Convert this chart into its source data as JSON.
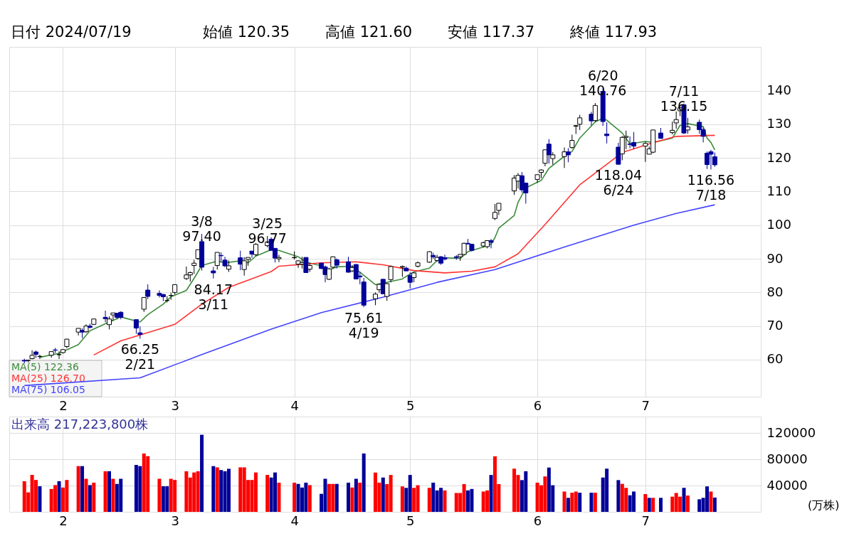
{
  "chart_data": [
    {
      "type": "candlestick",
      "title": "日付 2024/07/19",
      "annotations": [
        "始値 120.35",
        "高値 121.60",
        "安値 117.37",
        "終値 117.93",
        {
          "text": "3/8\n97.40",
          "x": "2024-03-08",
          "y": 97.4
        },
        {
          "text": "3/25\n96.77",
          "x": "2024-03-25",
          "y": 96.77
        },
        {
          "text": "6/20\n140.76",
          "x": "2024-06-20",
          "y": 140.76
        },
        {
          "text": "7/11\n136.15",
          "x": "2024-07-11",
          "y": 136.15
        },
        {
          "text": "66.25\n2/21",
          "x": "2024-02-21",
          "y": 66.25
        },
        {
          "text": "84.17\n3/11",
          "x": "2024-03-11",
          "y": 84.17
        },
        {
          "text": "75.61\n4/19",
          "x": "2024-04-19",
          "y": 75.61
        },
        {
          "text": "118.04\n6/24",
          "x": "2024-06-24",
          "y": 118.04
        },
        {
          "text": "116.56\n7/18",
          "x": "2024-07-18",
          "y": 116.56
        }
      ],
      "x": [
        "2024-01-22",
        "2024-01-23",
        "2024-01-24",
        "2024-01-25",
        "2024-01-26",
        "2024-01-29",
        "2024-01-30",
        "2024-01-31",
        "2024-02-01",
        "2024-02-02",
        "2024-02-05",
        "2024-02-06",
        "2024-02-07",
        "2024-02-08",
        "2024-02-09",
        "2024-02-12",
        "2024-02-13",
        "2024-02-14",
        "2024-02-15",
        "2024-02-16",
        "2024-02-20",
        "2024-02-21",
        "2024-02-22",
        "2024-02-23",
        "2024-02-26",
        "2024-02-27",
        "2024-02-28",
        "2024-02-29",
        "2024-03-01",
        "2024-03-04",
        "2024-03-05",
        "2024-03-06",
        "2024-03-07",
        "2024-03-08",
        "2024-03-11",
        "2024-03-12",
        "2024-03-13",
        "2024-03-14",
        "2024-03-15",
        "2024-03-18",
        "2024-03-19",
        "2024-03-20",
        "2024-03-21",
        "2024-03-22",
        "2024-03-25",
        "2024-03-26",
        "2024-03-27",
        "2024-03-28",
        "2024-04-01",
        "2024-04-02",
        "2024-04-03",
        "2024-04-04",
        "2024-04-05",
        "2024-04-08",
        "2024-04-09",
        "2024-04-10",
        "2024-04-11",
        "2024-04-12",
        "2024-04-15",
        "2024-04-16",
        "2024-04-17",
        "2024-04-18",
        "2024-04-19",
        "2024-04-22",
        "2024-04-23",
        "2024-04-24",
        "2024-04-25",
        "2024-04-26",
        "2024-04-29",
        "2024-04-30",
        "2024-05-01",
        "2024-05-02",
        "2024-05-03",
        "2024-05-06",
        "2024-05-07",
        "2024-05-08",
        "2024-05-09",
        "2024-05-10",
        "2024-05-13",
        "2024-05-14",
        "2024-05-15",
        "2024-05-16",
        "2024-05-17",
        "2024-05-20",
        "2024-05-21",
        "2024-05-22",
        "2024-05-23",
        "2024-05-24",
        "2024-05-28",
        "2024-05-29",
        "2024-05-30",
        "2024-05-31",
        "2024-06-03",
        "2024-06-04",
        "2024-06-05",
        "2024-06-06",
        "2024-06-07",
        "2024-06-10",
        "2024-06-11",
        "2024-06-12",
        "2024-06-13",
        "2024-06-14",
        "2024-06-17",
        "2024-06-18",
        "2024-06-20",
        "2024-06-21",
        "2024-06-24",
        "2024-06-25",
        "2024-06-26",
        "2024-06-27",
        "2024-06-28",
        "2024-07-01",
        "2024-07-02",
        "2024-07-03",
        "2024-07-05",
        "2024-07-08",
        "2024-07-09",
        "2024-07-10",
        "2024-07-11",
        "2024-07-12",
        "2024-07-15",
        "2024-07-16",
        "2024-07-17",
        "2024-07-18",
        "2024-07-19"
      ],
      "ohlc": [
        [
          59.8,
          60.3,
          58.9,
          59.6
        ],
        [
          59.8,
          60.0,
          59.2,
          59.8
        ],
        [
          60.3,
          62.8,
          60.1,
          61.3
        ],
        [
          62.3,
          62.7,
          60.5,
          61.6
        ],
        [
          60.9,
          61.5,
          60.2,
          61.0
        ],
        [
          61.3,
          62.5,
          60.6,
          62.4
        ],
        [
          62.9,
          63.5,
          62.0,
          62.8
        ],
        [
          61.5,
          62.5,
          60.2,
          61.5
        ],
        [
          62.1,
          63.2,
          61.8,
          63.0
        ],
        [
          63.9,
          66.2,
          63.4,
          66.1
        ],
        [
          68.2,
          69.3,
          67.2,
          69.3
        ],
        [
          68.7,
          69.3,
          66.4,
          68.2
        ],
        [
          68.3,
          70.5,
          68.0,
          70.0
        ],
        [
          70.0,
          70.7,
          69.3,
          69.6
        ],
        [
          70.5,
          72.1,
          70.3,
          72.1
        ],
        [
          72.6,
          74.6,
          71.1,
          72.2
        ],
        [
          70.4,
          72.9,
          69.0,
          72.1
        ],
        [
          73.3,
          73.9,
          71.5,
          73.9
        ],
        [
          73.8,
          73.9,
          72.0,
          72.6
        ],
        [
          74.1,
          74.4,
          72.0,
          72.6
        ],
        [
          71.9,
          71.9,
          67.7,
          69.4
        ],
        [
          68.0,
          69.9,
          66.25,
          67.5
        ],
        [
          75.0,
          78.5,
          74.2,
          78.5
        ],
        [
          80.7,
          82.4,
          78.0,
          78.8
        ],
        [
          79.7,
          80.6,
          78.5,
          79.1
        ],
        [
          79.4,
          79.5,
          77.4,
          78.7
        ],
        [
          77.6,
          78.9,
          77.0,
          77.6
        ],
        [
          79.1,
          79.9,
          77.8,
          79.1
        ],
        [
          80.0,
          82.3,
          79.4,
          82.3
        ],
        [
          84.1,
          87.7,
          83.7,
          85.2
        ],
        [
          85.2,
          86.2,
          83.2,
          85.9
        ],
        [
          88.0,
          89.7,
          85.5,
          88.7
        ],
        [
          90.1,
          92.7,
          89.6,
          92.7
        ],
        [
          95.1,
          97.4,
          86.5,
          87.5
        ],
        [
          86.4,
          87.6,
          84.17,
          85.8
        ],
        [
          88.0,
          91.9,
          86.8,
          91.9
        ],
        [
          91.0,
          91.9,
          89.1,
          90.9
        ],
        [
          89.6,
          90.6,
          87.5,
          87.9
        ],
        [
          86.9,
          89.5,
          86.1,
          87.9
        ],
        [
          90.3,
          92.4,
          86.6,
          88.4
        ],
        [
          86.8,
          90.5,
          85.0,
          89.4
        ],
        [
          89.8,
          90.4,
          87.9,
          90.4
        ],
        [
          92.3,
          92.3,
          90.3,
          91.4
        ],
        [
          91.2,
          94.7,
          90.8,
          94.3
        ],
        [
          93.9,
          96.77,
          93.4,
          95.0
        ],
        [
          95.8,
          96.4,
          92.5,
          92.5
        ],
        [
          93.1,
          93.2,
          88.9,
          90.2
        ],
        [
          90.0,
          91.2,
          89.0,
          90.4
        ],
        [
          90.3,
          92.2,
          89.8,
          90.4
        ],
        [
          88.4,
          89.5,
          87.3,
          89.4
        ],
        [
          88.4,
          90.6,
          87.1,
          88.9
        ],
        [
          90.4,
          90.4,
          85.9,
          85.9
        ],
        [
          86.9,
          88.8,
          86.1,
          88.0
        ],
        [
          88.7,
          88.8,
          86.9,
          87.1
        ],
        [
          87.6,
          88.0,
          83.0,
          85.3
        ],
        [
          83.9,
          87.3,
          83.7,
          87.0
        ],
        [
          87.5,
          90.7,
          87.1,
          90.6
        ],
        [
          89.7,
          90.1,
          87.1,
          88.1
        ],
        [
          89.1,
          90.6,
          85.9,
          86.0
        ],
        [
          86.4,
          88.1,
          86.0,
          87.4
        ],
        [
          88.3,
          88.4,
          83.9,
          84.0
        ],
        [
          84.9,
          86.1,
          82.4,
          84.6
        ],
        [
          83.1,
          84.3,
          75.61,
          76.2
        ],
        [
          78.1,
          80.0,
          76.2,
          79.5
        ],
        [
          80.8,
          82.6,
          79.9,
          82.4
        ],
        [
          83.9,
          84.0,
          79.5,
          79.6
        ],
        [
          78.8,
          82.9,
          77.5,
          82.6
        ],
        [
          83.8,
          88.0,
          83.0,
          87.7
        ],
        [
          87.5,
          88.0,
          84.6,
          87.7
        ],
        [
          87.2,
          87.7,
          86.3,
          86.4
        ],
        [
          85.0,
          86.0,
          81.2,
          83.0
        ],
        [
          84.4,
          85.9,
          83.0,
          85.8
        ],
        [
          87.8,
          89.2,
          87.4,
          88.8
        ],
        [
          89.0,
          92.2,
          88.8,
          92.1
        ],
        [
          91.0,
          91.8,
          90.0,
          90.6
        ],
        [
          89.5,
          91.2,
          89.1,
          90.4
        ],
        [
          90.6,
          90.8,
          88.2,
          88.7
        ],
        [
          90.3,
          91.2,
          89.5,
          89.9
        ],
        [
          90.6,
          91.1,
          89.7,
          90.4
        ],
        [
          90.6,
          91.4,
          89.4,
          91.3
        ],
        [
          91.3,
          94.8,
          91.3,
          94.6
        ],
        [
          94.6,
          95.9,
          94.4,
          94.4
        ],
        [
          94.3,
          94.5,
          92.2,
          92.5
        ],
        [
          93.8,
          95.1,
          93.4,
          94.8
        ],
        [
          93.6,
          95.4,
          93.1,
          95.4
        ],
        [
          95.4,
          95.9,
          93.1,
          94.9
        ],
        [
          102.0,
          106.3,
          101.5,
          103.8
        ],
        [
          104.4,
          106.5,
          103.0,
          106.5
        ],
        [
          110.2,
          114.9,
          109.0,
          114.0
        ],
        [
          113.1,
          115.5,
          110.9,
          114.8
        ],
        [
          114.7,
          115.8,
          109.7,
          110.5
        ],
        [
          112.5,
          112.7,
          106.4,
          109.6
        ],
        [
          113.6,
          115.0,
          112.6,
          115.0
        ],
        [
          115.7,
          116.6,
          114.0,
          116.4
        ],
        [
          118.4,
          122.4,
          117.5,
          122.4
        ],
        [
          124.1,
          125.6,
          118.3,
          120.9
        ],
        [
          119.8,
          121.7,
          118.0,
          120.9
        ],
        [
          120.4,
          123.1,
          117.0,
          121.8
        ],
        [
          121.8,
          122.9,
          118.7,
          120.9
        ],
        [
          123.1,
          126.9,
          122.7,
          125.2
        ],
        [
          129.4,
          129.8,
          127.1,
          129.6
        ],
        [
          130.0,
          132.8,
          128.3,
          131.9
        ],
        [
          133.0,
          133.7,
          129.6,
          131.0
        ],
        [
          131.1,
          136.3,
          130.7,
          135.6
        ],
        [
          139.8,
          140.76,
          129.5,
          130.8
        ],
        [
          127.1,
          130.6,
          124.3,
          126.6
        ],
        [
          123.2,
          124.5,
          118.04,
          118.1
        ],
        [
          121.2,
          126.5,
          119.3,
          126.1
        ],
        [
          126.1,
          128.1,
          122.6,
          126.4
        ],
        [
          124.1,
          126.4,
          122.9,
          124.0
        ],
        [
          124.6,
          127.7,
          122.6,
          123.5
        ],
        [
          123.5,
          124.8,
          118.8,
          124.3
        ],
        [
          121.1,
          123.4,
          121.1,
          122.7
        ],
        [
          121.7,
          128.3,
          121.4,
          128.3
        ],
        [
          127.4,
          128.9,
          125.7,
          125.8
        ],
        [
          127.5,
          130.8,
          127.0,
          128.2
        ],
        [
          130.4,
          133.8,
          128.7,
          131.4
        ],
        [
          134.0,
          135.1,
          132.4,
          134.9
        ],
        [
          135.8,
          136.15,
          127.1,
          127.4
        ],
        [
          128.3,
          131.9,
          127.2,
          129.2
        ],
        [
          130.6,
          131.4,
          127.2,
          128.4
        ],
        [
          128.4,
          129.0,
          124.6,
          126.4
        ],
        [
          121.4,
          121.9,
          116.7,
          118.0
        ],
        [
          121.85,
          122.4,
          116.56,
          121.09
        ],
        [
          120.35,
          121.6,
          117.37,
          117.93
        ]
      ],
      "series": [
        {
          "name": "MA(5)  122.36",
          "type": "line",
          "color": "#3c8c3c",
          "x": [
            "2024-01-26",
            "2024-01-31",
            "2024-02-05",
            "2024-02-08",
            "2024-02-13",
            "2024-02-16",
            "2024-02-21",
            "2024-02-23",
            "2024-02-27",
            "2024-02-29",
            "2024-03-04",
            "2024-03-06",
            "2024-03-08",
            "2024-03-12",
            "2024-03-14",
            "2024-03-18",
            "2024-03-20",
            "2024-03-22",
            "2024-03-26",
            "2024-03-28",
            "2024-04-02",
            "2024-04-04",
            "2024-04-08",
            "2024-04-10",
            "2024-04-12",
            "2024-04-16",
            "2024-04-18",
            "2024-04-22",
            "2024-04-29",
            "2024-04-30",
            "2024-05-02",
            "2024-05-06",
            "2024-05-08",
            "2024-05-10",
            "2024-05-14",
            "2024-05-16",
            "2024-05-20",
            "2024-05-22",
            "2024-05-23",
            "2024-05-24",
            "2024-05-28",
            "2024-05-29",
            "2024-05-31",
            "2024-06-04",
            "2024-06-06",
            "2024-06-10",
            "2024-06-12",
            "2024-06-14",
            "2024-06-18",
            "2024-06-20",
            "2024-06-21",
            "2024-06-25",
            "2024-06-27",
            "2024-07-01",
            "2024-07-03",
            "2024-07-08",
            "2024-07-10",
            "2024-07-12",
            "2024-07-16",
            "2024-07-17",
            "2024-07-18",
            "2024-07-19"
          ],
          "values": [
            60.7,
            61.9,
            64.5,
            68.6,
            71.2,
            72.7,
            71.2,
            73.4,
            76.5,
            78.7,
            80.6,
            84.2,
            88.0,
            89.3,
            88.8,
            89.4,
            88.8,
            90.8,
            92.7,
            92.5,
            90.6,
            89.0,
            87.9,
            86.7,
            87.6,
            87.8,
            86.0,
            82.3,
            84.0,
            84.8,
            86.1,
            87.2,
            89.5,
            90.3,
            90.1,
            92.1,
            93.5,
            94.4,
            96.3,
            99.1,
            102.9,
            106.8,
            111.1,
            113.3,
            116.9,
            120.5,
            121.9,
            125.9,
            130.7,
            131.8,
            131.2,
            127.4,
            124.2,
            124.9,
            124.6,
            125.9,
            129.7,
            130.2,
            129.3,
            125.9,
            124.6,
            122.36
          ]
        },
        {
          "name": "MA(25)  126.70",
          "type": "line",
          "color": "#ff3333",
          "x": [
            "2024-02-09",
            "2024-02-16",
            "2024-03-01",
            "2024-03-08",
            "2024-03-15",
            "2024-03-26",
            "2024-03-28",
            "2024-04-08",
            "2024-04-17",
            "2024-04-24",
            "2024-05-02",
            "2024-05-10",
            "2024-05-17",
            "2024-05-23",
            "2024-05-29",
            "2024-06-05",
            "2024-06-14",
            "2024-06-25",
            "2024-07-03",
            "2024-07-09",
            "2024-07-19"
          ],
          "values": [
            61.4,
            65.6,
            70.5,
            76.5,
            81.5,
            86.2,
            87.8,
            88.8,
            89.1,
            88.2,
            86.5,
            85.8,
            86.3,
            87.6,
            91.5,
            100.2,
            112.0,
            121.6,
            124.5,
            126.4,
            126.7
          ]
        },
        {
          "name": "MA(75)  106.05",
          "type": "line",
          "color": "#4444ff",
          "x": [
            "2024-01-22",
            "2024-02-21",
            "2024-03-08",
            "2024-03-26",
            "2024-04-08",
            "2024-04-24",
            "2024-05-08",
            "2024-05-23",
            "2024-06-10",
            "2024-06-28",
            "2024-07-09",
            "2024-07-19"
          ],
          "values": [
            52.3,
            54.6,
            61.5,
            69.1,
            74.0,
            78.6,
            83.0,
            86.8,
            93.5,
            100.0,
            103.5,
            106.05
          ]
        }
      ],
      "xlim": [
        "2024-01-19",
        "2024-07-30"
      ],
      "xticks": [
        {
          "value": "2024-02-01",
          "label": "2"
        },
        {
          "value": "2024-03-01",
          "label": "3"
        },
        {
          "value": "2024-04-01",
          "label": "4"
        },
        {
          "value": "2024-05-01",
          "label": "5"
        },
        {
          "value": "2024-06-03",
          "label": "6"
        },
        {
          "value": "2024-07-01",
          "label": "7"
        }
      ],
      "ylim": [
        49,
        153
      ],
      "yticks": [
        60,
        70,
        80,
        90,
        100,
        110,
        120,
        130,
        140
      ],
      "grid": true,
      "legend": "bottom left"
    },
    {
      "type": "bar",
      "title": "出来高 217,223,800株",
      "ylabel": "(万株)",
      "x": [
        "2024-01-22",
        "2024-01-23",
        "2024-01-24",
        "2024-01-25",
        "2024-01-26",
        "2024-01-29",
        "2024-01-30",
        "2024-01-31",
        "2024-02-01",
        "2024-02-02",
        "2024-02-05",
        "2024-02-06",
        "2024-02-07",
        "2024-02-08",
        "2024-02-09",
        "2024-02-12",
        "2024-02-13",
        "2024-02-14",
        "2024-02-15",
        "2024-02-16",
        "2024-02-20",
        "2024-02-21",
        "2024-02-22",
        "2024-02-23",
        "2024-02-26",
        "2024-02-27",
        "2024-02-28",
        "2024-02-29",
        "2024-03-01",
        "2024-03-04",
        "2024-03-05",
        "2024-03-06",
        "2024-03-07",
        "2024-03-08",
        "2024-03-11",
        "2024-03-12",
        "2024-03-13",
        "2024-03-14",
        "2024-03-15",
        "2024-03-18",
        "2024-03-19",
        "2024-03-20",
        "2024-03-21",
        "2024-03-22",
        "2024-03-25",
        "2024-03-26",
        "2024-03-27",
        "2024-03-28",
        "2024-04-01",
        "2024-04-02",
        "2024-04-03",
        "2024-04-04",
        "2024-04-05",
        "2024-04-08",
        "2024-04-09",
        "2024-04-10",
        "2024-04-11",
        "2024-04-12",
        "2024-04-15",
        "2024-04-16",
        "2024-04-17",
        "2024-04-18",
        "2024-04-19",
        "2024-04-22",
        "2024-04-23",
        "2024-04-24",
        "2024-04-25",
        "2024-04-26",
        "2024-04-29",
        "2024-04-30",
        "2024-05-01",
        "2024-05-02",
        "2024-05-03",
        "2024-05-06",
        "2024-05-07",
        "2024-05-08",
        "2024-05-09",
        "2024-05-10",
        "2024-05-13",
        "2024-05-14",
        "2024-05-15",
        "2024-05-16",
        "2024-05-17",
        "2024-05-20",
        "2024-05-21",
        "2024-05-22",
        "2024-05-23",
        "2024-05-24",
        "2024-05-28",
        "2024-05-29",
        "2024-05-30",
        "2024-05-31",
        "2024-06-03",
        "2024-06-04",
        "2024-06-05",
        "2024-06-06",
        "2024-06-07",
        "2024-06-10",
        "2024-06-11",
        "2024-06-12",
        "2024-06-13",
        "2024-06-14",
        "2024-06-17",
        "2024-06-18",
        "2024-06-20",
        "2024-06-21",
        "2024-06-24",
        "2024-06-25",
        "2024-06-26",
        "2024-06-27",
        "2024-06-28",
        "2024-07-01",
        "2024-07-02",
        "2024-07-03",
        "2024-07-05",
        "2024-07-08",
        "2024-07-09",
        "2024-07-10",
        "2024-07-11",
        "2024-07-12",
        "2024-07-15",
        "2024-07-16",
        "2024-07-17",
        "2024-07-18",
        "2024-07-19"
      ],
      "values": [
        46600,
        29600,
        56200,
        48500,
        38900,
        34800,
        40700,
        46600,
        37000,
        48500,
        69600,
        69600,
        50300,
        40700,
        44400,
        61800,
        61800,
        50300,
        42500,
        50300,
        71400,
        69600,
        88800,
        84700,
        50300,
        38900,
        38900,
        50300,
        48500,
        61800,
        52200,
        59900,
        61800,
        117300,
        69600,
        67700,
        63600,
        61800,
        65500,
        67700,
        67700,
        48500,
        48500,
        59900,
        56200,
        52200,
        59900,
        44400,
        44400,
        42500,
        37000,
        44400,
        40700,
        27400,
        50300,
        42500,
        42500,
        42500,
        44400,
        37000,
        50300,
        44400,
        88800,
        59900,
        44400,
        52200,
        42200,
        56100,
        38700,
        36500,
        56100,
        36500,
        40500,
        36500,
        44400,
        32600,
        36500,
        32600,
        28700,
        28700,
        42200,
        32600,
        34800,
        30900,
        32600,
        56100,
        84400,
        42200,
        65700,
        56100,
        48300,
        61800,
        44400,
        40500,
        53900,
        67400,
        40500,
        30900,
        21300,
        29100,
        30900,
        29100,
        29100,
        29100,
        52200,
        65700,
        48300,
        42600,
        36500,
        25200,
        30900,
        27000,
        21300,
        21300,
        21300,
        23100,
        28700,
        23100,
        36500,
        24800,
        19100,
        21300,
        38700,
        30900,
        21722
      ],
      "colors": [
        "#ff0000",
        "#ff0000",
        "#ff0000",
        "#ff0000",
        "#000099",
        "#ff0000",
        "#ff0000",
        "#000099",
        "#ff0000",
        "#ff0000",
        "#ff0000",
        "#000099",
        "#ff0000",
        "#000099",
        "#ff0000",
        "#ff0000",
        "#000099",
        "#ff0000",
        "#000099",
        "#000099",
        "#000099",
        "#000099",
        "#ff0000",
        "#ff0000",
        "#ff0000",
        "#000099",
        "#000099",
        "#ff0000",
        "#ff0000",
        "#ff0000",
        "#ff0000",
        "#ff0000",
        "#ff0000",
        "#000099",
        "#000099",
        "#ff0000",
        "#000099",
        "#000099",
        "#000099",
        "#ff0000",
        "#ff0000",
        "#ff0000",
        "#ff0000",
        "#ff0000",
        "#ff0000",
        "#000099",
        "#000099",
        "#ff0000",
        "#ff0000",
        "#000099",
        "#000099",
        "#000099",
        "#ff0000",
        "#000099",
        "#000099",
        "#ff0000",
        "#ff0000",
        "#000099",
        "#000099",
        "#ff0000",
        "#000099",
        "#ff0000",
        "#000099",
        "#ff0000",
        "#ff0000",
        "#000099",
        "#ff0000",
        "#ff0000",
        "#ff0000",
        "#000099",
        "#000099",
        "#ff0000",
        "#ff0000",
        "#ff0000",
        "#000099",
        "#000099",
        "#000099",
        "#ff0000",
        "#ff0000",
        "#ff0000",
        "#ff0000",
        "#000099",
        "#000099",
        "#ff0000",
        "#ff0000",
        "#000099",
        "#ff0000",
        "#ff0000",
        "#ff0000",
        "#ff0000",
        "#000099",
        "#000099",
        "#ff0000",
        "#ff0000",
        "#ff0000",
        "#000099",
        "#000099",
        "#ff0000",
        "#000099",
        "#ff0000",
        "#ff0000",
        "#000099",
        "#000099",
        "#ff0000",
        "#000099",
        "#000099",
        "#000099",
        "#ff0000",
        "#ff0000",
        "#000099",
        "#000099",
        "#ff0000",
        "#000099",
        "#ff0000",
        "#000099",
        "#ff0000",
        "#ff0000",
        "#ff0000",
        "#000099",
        "#ff0000",
        "#000099",
        "#000099",
        "#000099",
        "#ff0000",
        "#000099"
      ],
      "xlim": [
        "2024-01-19",
        "2024-07-30"
      ],
      "xticks": [
        {
          "value": "2024-02-01",
          "label": "2"
        },
        {
          "value": "2024-03-01",
          "label": "3"
        },
        {
          "value": "2024-04-01",
          "label": "4"
        },
        {
          "value": "2024-05-01",
          "label": "5"
        },
        {
          "value": "2024-06-03",
          "label": "6"
        },
        {
          "value": "2024-07-01",
          "label": "7"
        }
      ],
      "ylim": [
        0,
        145000
      ],
      "yticks": [
        40000,
        80000,
        120000
      ],
      "grid": true
    }
  ]
}
